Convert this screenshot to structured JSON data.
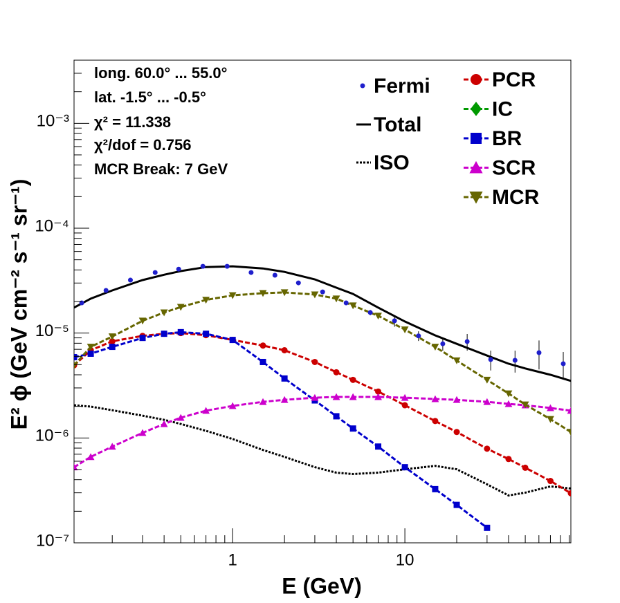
{
  "chart_data": {
    "type": "line",
    "log_x": true,
    "log_y": true,
    "xlabel": "E (GeV)",
    "ylabel": "E² ϕ (GeV cm⁻² s⁻¹ sr⁻¹)",
    "annotations": [
      "long. 60.0° ... 55.0°",
      "lat. -1.5° ... -0.5°",
      "χ² = 11.338",
      "χ²/dof = 0.756",
      "MCR Break:  7 GeV"
    ],
    "xlim": [
      0.12,
      92
    ],
    "ylim": [
      1e-07,
      0.004
    ],
    "xticks": [
      1,
      10
    ],
    "xminorticks": [
      0.2,
      0.3,
      0.4,
      0.5,
      0.6,
      0.7,
      0.8,
      0.9,
      2,
      3,
      4,
      5,
      6,
      7,
      8,
      9,
      20,
      30,
      40,
      50,
      60,
      70,
      80,
      90
    ],
    "yticks": [
      {
        "value": 1e-07,
        "label": "10⁻⁷"
      },
      {
        "value": 1e-06,
        "label": "10⁻⁶"
      },
      {
        "value": 1e-05,
        "label": "10⁻⁵"
      },
      {
        "value": 0.0001,
        "label": "10⁻⁴"
      },
      {
        "value": 0.001,
        "label": "10⁻³"
      }
    ],
    "yminorticks": [
      2e-07,
      3e-07,
      4e-07,
      5e-07,
      6e-07,
      7e-07,
      8e-07,
      9e-07,
      2e-06,
      3e-06,
      4e-06,
      5e-06,
      6e-06,
      7e-06,
      8e-06,
      9e-06,
      2e-05,
      3e-05,
      4e-05,
      5e-05,
      6e-05,
      7e-05,
      8e-05,
      9e-05,
      0.0002,
      0.0003,
      0.0004,
      0.0005,
      0.0006,
      0.0007,
      0.0008,
      0.0009,
      0.002,
      0.003
    ],
    "points": {
      "name": "Fermi",
      "color": "#1f1fcc",
      "x": [
        0.133,
        0.184,
        0.255,
        0.355,
        0.486,
        0.672,
        0.929,
        1.28,
        1.76,
        2.41,
        3.33,
        4.56,
        6.3,
        8.71,
        12.0,
        16.6,
        23.0,
        31.5,
        43.6,
        60.1,
        83.1
      ],
      "values": [
        1.94e-05,
        2.55e-05,
        3.2e-05,
        3.78e-05,
        4.07e-05,
        4.33e-05,
        4.33e-05,
        3.78e-05,
        3.56e-05,
        3.01e-05,
        2.47e-05,
        1.94e-05,
        1.57e-05,
        1.31e-05,
        9.4e-06,
        7.9e-06,
        8.3e-06,
        5.6e-06,
        5.5e-06,
        6.5e-06,
        5.1e-06
      ],
      "errors": [
        6e-07,
        8e-07,
        1e-06,
        1.1e-06,
        1.2e-06,
        1.3e-06,
        1.3e-06,
        1.1e-06,
        1.1e-06,
        1e-06,
        1.1e-06,
        9e-07,
        9e-07,
        1.6e-06,
        1e-06,
        1.1e-06,
        1.5e-06,
        1.2e-06,
        1.3e-06,
        2e-06,
        1.5e-06
      ]
    },
    "x": [
      0.12,
      0.15,
      0.2,
      0.3,
      0.4,
      0.5,
      0.7,
      1,
      1.5,
      2,
      3,
      4,
      5,
      7,
      10,
      15,
      20,
      30,
      40,
      50,
      70,
      92
    ],
    "series": [
      {
        "name": "Total",
        "color": "#000000",
        "line": "solid",
        "marker": "none",
        "values": [
          1.75e-05,
          2.13e-05,
          2.55e-05,
          3.2e-05,
          3.6e-05,
          3.9e-05,
          4.26e-05,
          4.33e-05,
          4.13e-05,
          3.83e-05,
          3.25e-05,
          2.71e-05,
          2.36e-05,
          1.75e-05,
          1.29e-05,
          9.5e-06,
          7.9e-06,
          6.1e-06,
          5.1e-06,
          4.6e-06,
          4e-06,
          3.5e-06
        ]
      },
      {
        "name": "ISO",
        "color": "#000000",
        "line": "dotted",
        "marker": "none",
        "values": [
          2.05e-06,
          1.99e-06,
          1.84e-06,
          1.63e-06,
          1.49e-06,
          1.36e-06,
          1.17e-06,
          9.78e-07,
          7.68e-07,
          6.6e-07,
          5.26e-07,
          4.67e-07,
          4.53e-07,
          4.67e-07,
          5.03e-07,
          5.42e-07,
          5.03e-07,
          3.61e-07,
          2.83e-07,
          3.01e-07,
          3.45e-07,
          3.3e-07
        ]
      },
      {
        "name": "PCR",
        "color": "#cc0000",
        "line": "dashed",
        "marker": "circle",
        "values": [
          4.92e-06,
          6.86e-06,
          8.34e-06,
          9.4e-06,
          9.85e-06,
          1e-05,
          9.55e-06,
          8.6e-06,
          7.6e-06,
          6.86e-06,
          5.3e-06,
          4.23e-06,
          3.58e-06,
          2.77e-06,
          2.05e-06,
          1.45e-06,
          1.14e-06,
          7.9e-07,
          6.3e-07,
          5.2e-07,
          3.89e-07,
          2.97e-07
        ]
      },
      {
        "name": "IC",
        "color": "#009900",
        "line": "dashed",
        "marker": "diamond",
        "values": [
          null,
          null,
          null,
          null,
          null,
          null,
          null,
          null,
          null,
          null,
          null,
          null,
          null,
          null,
          null,
          null,
          null,
          null,
          null,
          null,
          null,
          null
        ]
      },
      {
        "name": "BR",
        "color": "#0000cc",
        "line": "dashed",
        "marker": "square",
        "values": [
          5.89e-06,
          6.36e-06,
          7.39e-06,
          8.99e-06,
          9.85e-06,
          1.02e-05,
          9.85e-06,
          8.6e-06,
          5.3e-06,
          3.69e-06,
          2.28e-06,
          1.61e-06,
          1.23e-06,
          8.28e-07,
          5.26e-07,
          3.25e-07,
          2.3e-07,
          1.39e-07,
          null,
          null,
          null,
          null
        ]
      },
      {
        "name": "SCR",
        "color": "#cc00cc",
        "line": "dashed",
        "marker": "triangle",
        "values": [
          5.26e-07,
          6.6e-07,
          8.28e-07,
          1.12e-06,
          1.36e-06,
          1.56e-06,
          1.82e-06,
          2.02e-06,
          2.21e-06,
          2.31e-06,
          2.42e-06,
          2.46e-06,
          2.46e-06,
          2.46e-06,
          2.42e-06,
          2.35e-06,
          2.31e-06,
          2.21e-06,
          2.11e-06,
          2.05e-06,
          1.93e-06,
          1.82e-06
        ]
      },
      {
        "name": "MCR",
        "color": "#666600",
        "line": "dashed",
        "marker": "triangle-down",
        "values": [
          4.92e-06,
          7.39e-06,
          9.27e-06,
          1.31e-05,
          1.57e-05,
          1.77e-05,
          2.07e-05,
          2.29e-05,
          2.4e-05,
          2.44e-05,
          2.33e-05,
          2.13e-05,
          1.83e-05,
          1.46e-05,
          1.08e-05,
          7.39e-06,
          5.47e-06,
          3.58e-06,
          2.65e-06,
          2.08e-06,
          1.51e-06,
          1.14e-06
        ]
      }
    ]
  }
}
